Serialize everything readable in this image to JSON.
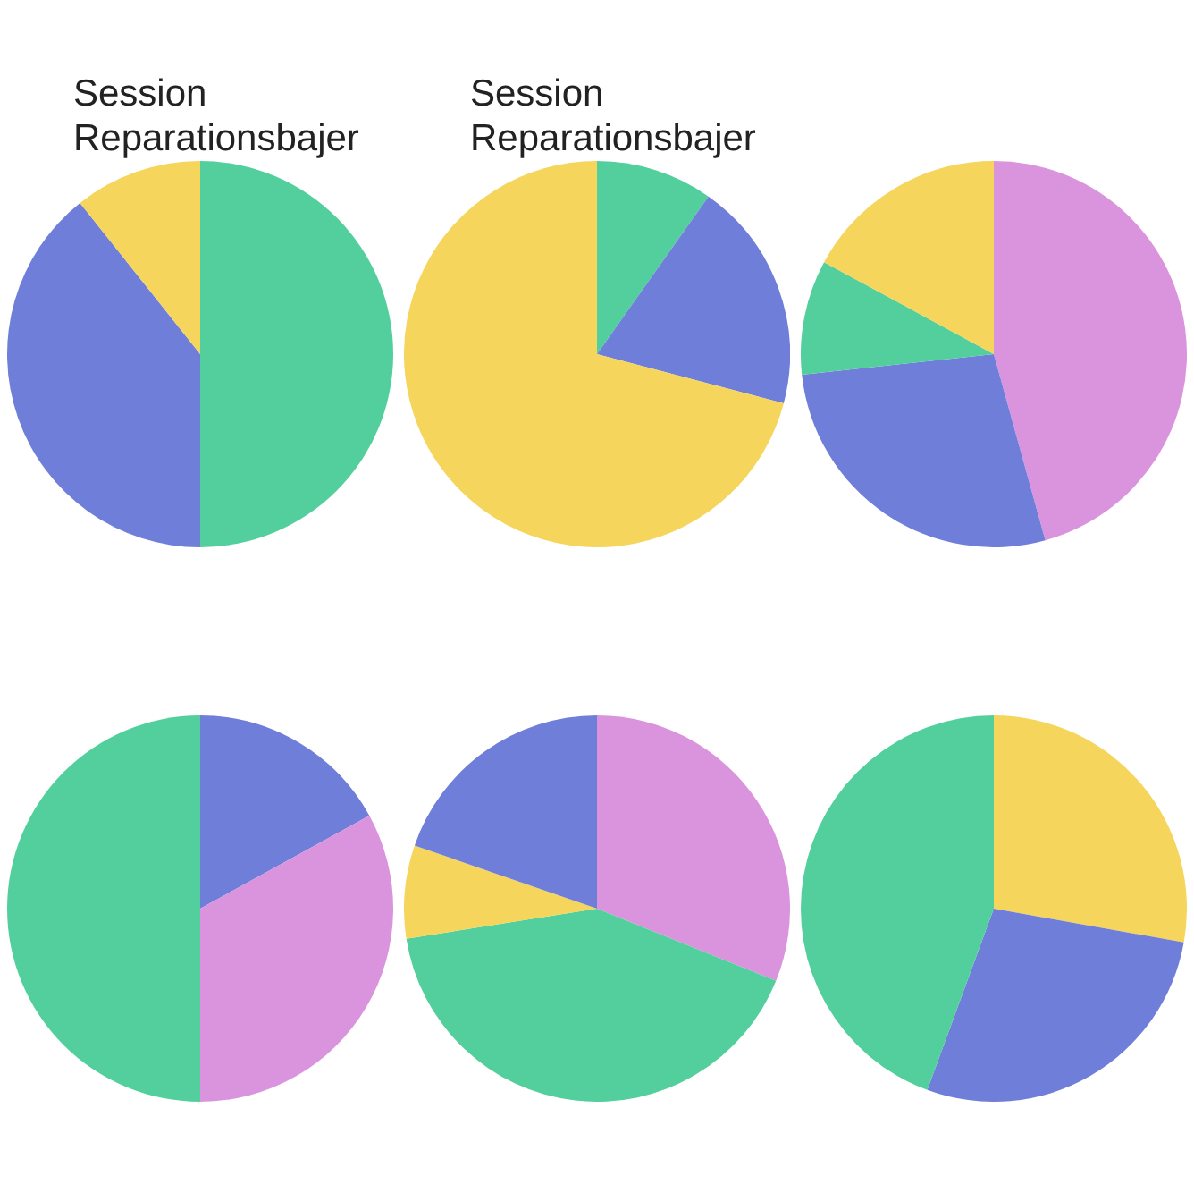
{
  "chart_data": [
    {
      "type": "pie",
      "title": "Session\nReparationsbajer",
      "categories": [
        null,
        null,
        null
      ],
      "values": [
        50,
        39.3,
        10.7
      ],
      "colors": [
        "#52cf9c",
        "#6f7ed8",
        "#f5d55c"
      ]
    },
    {
      "type": "pie",
      "title": "Session\nReparationsbajer",
      "categories": [
        null,
        null,
        null
      ],
      "values": [
        9.8,
        19.3,
        70.9
      ],
      "colors": [
        "#52cf9c",
        "#6f7ed8",
        "#f5d55c"
      ]
    },
    {
      "type": "pie",
      "categories": [
        null,
        null,
        null,
        null
      ],
      "values": [
        45.7,
        27.6,
        9.6,
        17.1
      ],
      "colors": [
        "#d994dd",
        "#6f7ed8",
        "#52cf9c",
        "#f5d55c"
      ]
    },
    {
      "type": "pie",
      "categories": [
        null,
        null,
        null
      ],
      "values": [
        17,
        33,
        50
      ],
      "colors": [
        "#6f7ed8",
        "#d994dd",
        "#52cf9c"
      ]
    },
    {
      "type": "pie",
      "categories": [
        null,
        null,
        null,
        null
      ],
      "values": [
        31.1,
        41.4,
        7.8,
        19.7
      ],
      "colors": [
        "#d994dd",
        "#52cf9c",
        "#f5d55c",
        "#6f7ed8"
      ]
    },
    {
      "type": "pie",
      "categories": [
        null,
        null,
        null
      ],
      "values": [
        27.8,
        27.8,
        44.4
      ],
      "colors": [
        "#f5d55c",
        "#6f7ed8",
        "#52cf9c"
      ]
    }
  ]
}
